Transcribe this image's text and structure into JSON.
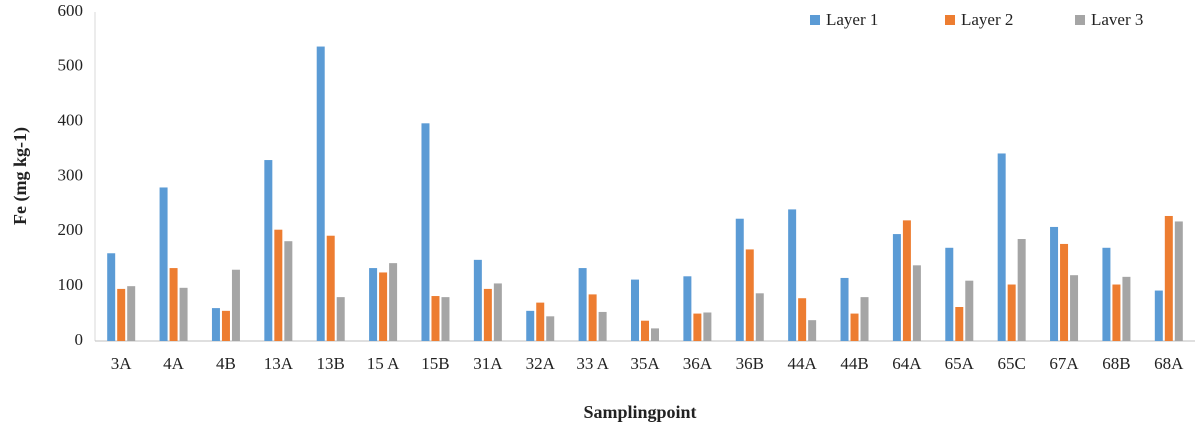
{
  "chart_data": {
    "type": "bar",
    "x_label": "Samplingpoint",
    "y_label": "Fe (mg kg-1)",
    "categories": [
      "3A",
      "4A",
      "4B",
      "13A",
      "13B",
      "15 A",
      "15B",
      "31A",
      "32A",
      "33 A",
      "35A",
      "36A",
      "36B",
      "44A",
      "44B",
      "64A",
      "65A",
      "65C",
      "67A",
      "68B",
      "68A"
    ],
    "series": [
      {
        "name": "Layer 1",
        "color": "#5b9bd5",
        "values": [
          160,
          280,
          60,
          330,
          537,
          133,
          397,
          148,
          55,
          133,
          112,
          118,
          223,
          240,
          115,
          195,
          170,
          342,
          208,
          170,
          92
        ]
      },
      {
        "name": "Layer 2",
        "color": "#ed7d31",
        "values": [
          95,
          133,
          55,
          203,
          192,
          125,
          82,
          95,
          70,
          85,
          37,
          50,
          167,
          78,
          50,
          220,
          62,
          103,
          177,
          103,
          228
        ]
      },
      {
        "name": "Laver 3",
        "color": "#a5a5a5",
        "values": [
          100,
          97,
          130,
          182,
          80,
          142,
          80,
          105,
          45,
          53,
          23,
          52,
          87,
          38,
          80,
          138,
          110,
          186,
          120,
          117,
          218
        ]
      }
    ],
    "ylim": [
      0,
      600
    ],
    "yticks": [
      0,
      100,
      200,
      300,
      400,
      500,
      600
    ],
    "grid": false,
    "legend": "top-right"
  }
}
